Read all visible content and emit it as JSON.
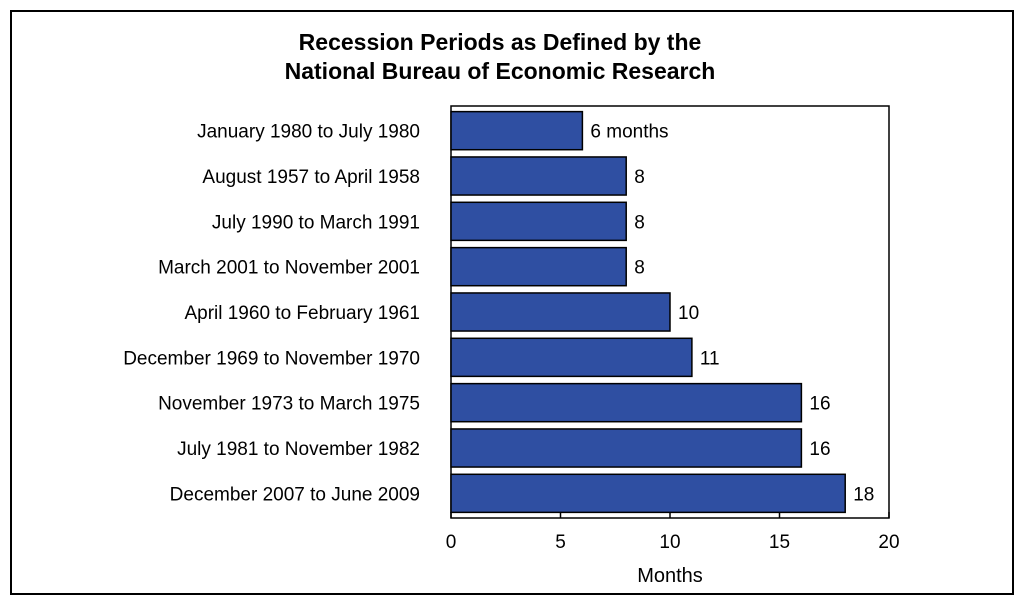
{
  "chart_data": {
    "type": "bar",
    "orientation": "horizontal",
    "title_lines": [
      "Recession Periods as Defined by the",
      "National Bureau of Economic Research"
    ],
    "categories": [
      "January 1980 to July 1980",
      "August 1957 to April 1958",
      "July 1990 to March 1991",
      "March 2001 to November 2001",
      "April 1960 to February 1961",
      "December 1969 to November 1970",
      "November 1973 to March 1975",
      "July 1981 to November 1982",
      "December 2007 to June 2009"
    ],
    "values": [
      6,
      8,
      8,
      8,
      10,
      11,
      16,
      16,
      18
    ],
    "value_labels": [
      "6 months",
      "8",
      "8",
      "8",
      "10",
      "11",
      "16",
      "16",
      "18"
    ],
    "xlabel": "Months",
    "ylabel": "",
    "xlim": [
      0,
      20
    ],
    "xticks": [
      0,
      5,
      10,
      15,
      20
    ],
    "grid": false,
    "bar_color": "#2f4fa2",
    "bar_edge_color": "#000000"
  }
}
